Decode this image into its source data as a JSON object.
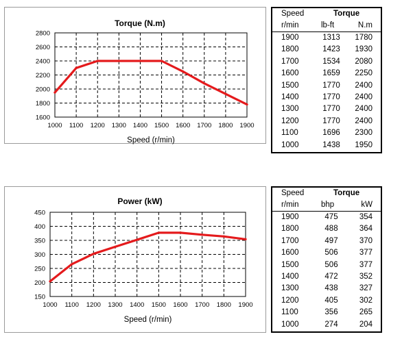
{
  "chart_data": [
    {
      "type": "line",
      "title": "Torque (N.m)",
      "xlabel": "Speed (r/min)",
      "ylabel": "",
      "x": [
        1000,
        1100,
        1200,
        1300,
        1400,
        1500,
        1600,
        1700,
        1800,
        1900
      ],
      "series": [
        {
          "values": [
            1950,
            2300,
            2400,
            2400,
            2400,
            2400,
            2250,
            2080,
            1930,
            1780
          ],
          "color": "#e41a1c"
        }
      ],
      "xlim": [
        1000,
        1900
      ],
      "ylim": [
        1600,
        2800
      ],
      "xticks": [
        1000,
        1100,
        1200,
        1300,
        1400,
        1500,
        1600,
        1700,
        1800,
        1900
      ],
      "yticks": [
        1600,
        1800,
        2000,
        2200,
        2400,
        2600,
        2800
      ],
      "grid": true
    },
    {
      "type": "line",
      "title": "Power (kW)",
      "xlabel": "Speed (r/min)",
      "ylabel": "",
      "x": [
        1000,
        1100,
        1200,
        1300,
        1400,
        1500,
        1600,
        1700,
        1800,
        1900
      ],
      "series": [
        {
          "values": [
            204,
            265,
            302,
            327,
            352,
            377,
            377,
            370,
            364,
            354
          ],
          "color": "#e41a1c"
        }
      ],
      "xlim": [
        1000,
        1900
      ],
      "ylim": [
        150,
        450
      ],
      "xticks": [
        1000,
        1100,
        1200,
        1300,
        1400,
        1500,
        1600,
        1700,
        1800,
        1900
      ],
      "yticks": [
        150,
        200,
        250,
        300,
        350,
        400,
        450
      ],
      "grid": true
    }
  ],
  "torque_table": {
    "header_speed": "Speed",
    "header_group": "Torque",
    "unit_speed": "r/min",
    "unit_a": "lb-ft",
    "unit_b": "N.m",
    "rows": [
      [
        "1900",
        "1313",
        "1780"
      ],
      [
        "1800",
        "1423",
        "1930"
      ],
      [
        "1700",
        "1534",
        "2080"
      ],
      [
        "1600",
        "1659",
        "2250"
      ],
      [
        "1500",
        "1770",
        "2400"
      ],
      [
        "1400",
        "1770",
        "2400"
      ],
      [
        "1300",
        "1770",
        "2400"
      ],
      [
        "1200",
        "1770",
        "2400"
      ],
      [
        "1100",
        "1696",
        "2300"
      ],
      [
        "1000",
        "1438",
        "1950"
      ]
    ]
  },
  "power_table": {
    "header_speed": "Speed",
    "header_group": "Torque",
    "unit_speed": "r/min",
    "unit_a": "bhp",
    "unit_b": "kW",
    "rows": [
      [
        "1900",
        "475",
        "354"
      ],
      [
        "1800",
        "488",
        "364"
      ],
      [
        "1700",
        "497",
        "370"
      ],
      [
        "1600",
        "506",
        "377"
      ],
      [
        "1500",
        "506",
        "377"
      ],
      [
        "1400",
        "472",
        "352"
      ],
      [
        "1300",
        "438",
        "327"
      ],
      [
        "1200",
        "405",
        "302"
      ],
      [
        "1100",
        "356",
        "265"
      ],
      [
        "1000",
        "274",
        "204"
      ]
    ]
  }
}
